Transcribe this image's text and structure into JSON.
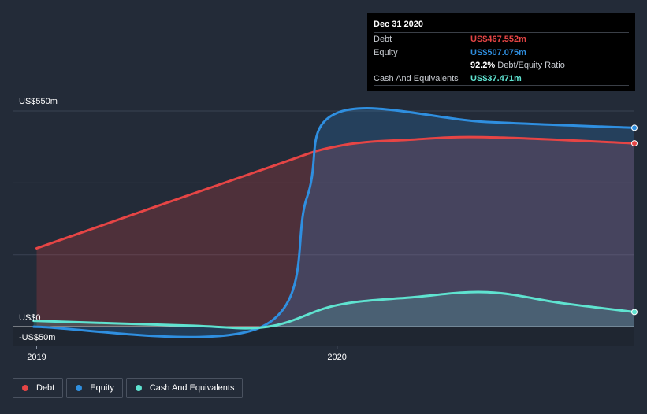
{
  "chart_data": {
    "type": "area",
    "x_ticks": [
      {
        "label": "2019",
        "x": 2019.0
      },
      {
        "label": "2020",
        "x": 2020.0
      }
    ],
    "y_ticks": [
      {
        "label": "US$550m",
        "y": 550
      },
      {
        "label": "US$0",
        "y": 0
      },
      {
        "label": "-US$50m",
        "y": -50
      }
    ],
    "xlim": [
      2018.92,
      2020.99
    ],
    "ylim": [
      -50,
      550
    ],
    "grid": true,
    "series": [
      {
        "name": "Debt",
        "color": "#e64545",
        "points": [
          [
            2019.0,
            200
          ],
          [
            2019.75,
            400
          ],
          [
            2020.0,
            460
          ],
          [
            2020.25,
            477
          ],
          [
            2020.5,
            483
          ],
          [
            2020.99,
            467.552
          ]
        ]
      },
      {
        "name": "Equity",
        "color": "#2f8fe0",
        "points": [
          [
            2018.99,
            0
          ],
          [
            2019.75,
            0
          ],
          [
            2019.9,
            330
          ],
          [
            2020.0,
            545
          ],
          [
            2020.5,
            522
          ],
          [
            2020.99,
            507.075
          ]
        ]
      },
      {
        "name": "Cash And Equivalents",
        "color": "#5fe3d0",
        "points": [
          [
            2018.99,
            15
          ],
          [
            2019.5,
            3
          ],
          [
            2019.77,
            0
          ],
          [
            2020.0,
            55
          ],
          [
            2020.25,
            75
          ],
          [
            2020.5,
            88
          ],
          [
            2020.75,
            60
          ],
          [
            2020.99,
            37.471
          ]
        ]
      }
    ]
  },
  "tooltip": {
    "date": "Dec 31 2020",
    "rows": [
      {
        "label": "Debt",
        "value": "US$467.552m",
        "color": "#e64545"
      },
      {
        "label": "Equity",
        "value": "US$507.075m",
        "color": "#2f8fe0"
      },
      {
        "label": "",
        "value": "92.2%",
        "sub": "Debt/Equity Ratio",
        "color": "#ffffff"
      },
      {
        "label": "Cash And Equivalents",
        "value": "US$37.471m",
        "color": "#5fe3d0"
      }
    ]
  },
  "legend": [
    {
      "label": "Debt",
      "color": "#e64545"
    },
    {
      "label": "Equity",
      "color": "#2f8fe0"
    },
    {
      "label": "Cash And Equivalents",
      "color": "#5fe3d0"
    }
  ]
}
